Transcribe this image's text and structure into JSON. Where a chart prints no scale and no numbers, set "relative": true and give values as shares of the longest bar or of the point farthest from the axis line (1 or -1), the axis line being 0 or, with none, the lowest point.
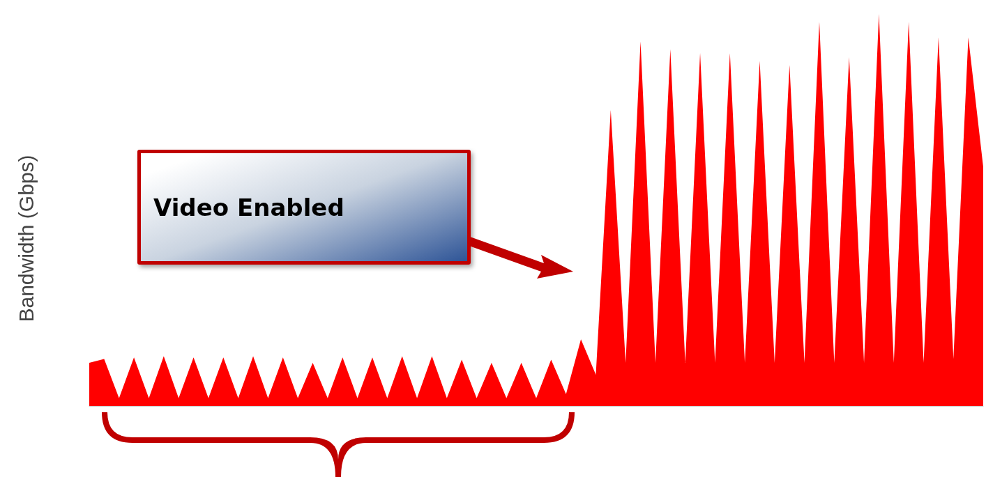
{
  "chart_data": {
    "type": "area",
    "relative": true,
    "ylabel": "Bandwidth (Gbps)",
    "annotations": [
      "Video Enabled"
    ],
    "categories": [
      null,
      null,
      null,
      null,
      null,
      null,
      null,
      null,
      null,
      null,
      null,
      null,
      null,
      null,
      null,
      null,
      null,
      null,
      null,
      null,
      null,
      null,
      null,
      null,
      null,
      null,
      null,
      null,
      null,
      null,
      null,
      null,
      null,
      null,
      null,
      null,
      null,
      null,
      null,
      null,
      null,
      null,
      null,
      null,
      null,
      null,
      null,
      null,
      null,
      null,
      null,
      null,
      null,
      null,
      null,
      null,
      null,
      null,
      null,
      null,
      null
    ],
    "series": [
      {
        "color": "#ff0000",
        "values": [
          0.11,
          0.12,
          0.02,
          0.124,
          0.02,
          0.127,
          0.02,
          0.124,
          0.02,
          0.124,
          0.02,
          0.127,
          0.02,
          0.124,
          0.02,
          0.11,
          0.02,
          0.124,
          0.02,
          0.124,
          0.02,
          0.127,
          0.02,
          0.127,
          0.02,
          0.118,
          0.02,
          0.11,
          0.02,
          0.11,
          0.02,
          0.118,
          0.03,
          0.17,
          0.08,
          0.755,
          0.11,
          0.93,
          0.11,
          0.91,
          0.11,
          0.9,
          0.11,
          0.9,
          0.11,
          0.88,
          0.11,
          0.87,
          0.11,
          0.98,
          0.11,
          0.89,
          0.11,
          1,
          0.11,
          0.98,
          0.11,
          0.94,
          0.12,
          0.94,
          0.61
        ]
      }
    ]
  }
}
